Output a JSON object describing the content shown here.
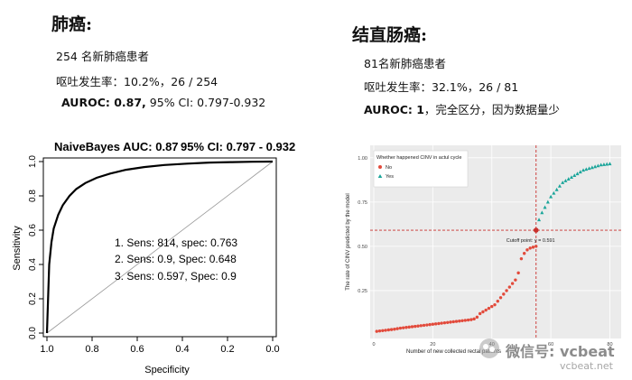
{
  "left": {
    "title": "肺癌:",
    "lines": [
      "254 名新肺癌患者",
      "呕吐发生率：10.2%，26 / 254"
    ],
    "auroc_label": "AUROC: 0.87,",
    "auroc_ci": "95% CI: 0.797-0.932"
  },
  "right": {
    "title": "结直肠癌:",
    "lines": [
      "81名新肺癌患者",
      "呕吐发生率：32.1%，26 / 81"
    ],
    "auroc_label": "AUROC: 1",
    "auroc_note": "，完全区分，因为数据量少"
  },
  "watermark": {
    "text": "微信号: vcbeat",
    "domain": "vcbeat.net"
  },
  "chart_data": [
    {
      "type": "line",
      "title": "NaiveBayes AUC: 0.87",
      "title_ci": "95% CI: 0.797 - 0.932",
      "xlabel": "Specificity",
      "ylabel": "Sensitivity",
      "x_reversed": true,
      "xlim": [
        1.0,
        0.0
      ],
      "ylim": [
        0.0,
        1.0
      ],
      "x_ticks": [
        "1.0",
        "0.8",
        "0.6",
        "0.4",
        "0.2",
        "0.0"
      ],
      "y_ticks": [
        "0.0",
        "0.2",
        "0.4",
        "0.6",
        "0.8",
        "1.0"
      ],
      "series": [
        {
          "type": "roc",
          "x": [
            1.0,
            0.99,
            0.98,
            0.97,
            0.95,
            0.93,
            0.9,
            0.87,
            0.83,
            0.78,
            0.72,
            0.65,
            0.57,
            0.48,
            0.38,
            0.28,
            0.18,
            0.09,
            0.0
          ],
          "y": [
            0.0,
            0.4,
            0.53,
            0.61,
            0.69,
            0.745,
            0.8,
            0.84,
            0.875,
            0.905,
            0.93,
            0.952,
            0.968,
            0.98,
            0.988,
            0.994,
            0.997,
            0.999,
            1.0
          ]
        },
        {
          "type": "reference",
          "x": [
            1.0,
            0.0
          ],
          "y": [
            0.0,
            1.0
          ]
        }
      ],
      "annotations": [
        "1.  Sens: 814, spec: 0.763",
        "2.  Sens: 0.9, Spec: 0.648",
        "3.  Sens: 0.597, Spec: 0.9"
      ]
    },
    {
      "type": "scatter",
      "xlabel": "Number of new collected rectal patients",
      "ylabel": "The rate of CINV predicted by the model",
      "legend_title": "Whether happened CINV in actul cycle",
      "legend_position": "top-left",
      "xlim": [
        0,
        82
      ],
      "ylim": [
        0,
        1.05
      ],
      "x_ticks": [
        "0",
        "20",
        "40",
        "60",
        "80"
      ],
      "y_ticks": [
        "0.25",
        "0.50",
        "0.75",
        "1.00"
      ],
      "y_tick_values": [
        0.25,
        0.5,
        0.75,
        1.0
      ],
      "grid": true,
      "cutoff": {
        "x": 55,
        "y": 0.591,
        "label": "Cutoff point: y = 0.591"
      },
      "series": [
        {
          "name": "No",
          "color": "#e24a3b",
          "x": [
            1,
            2,
            3,
            4,
            5,
            6,
            7,
            8,
            9,
            10,
            11,
            12,
            13,
            14,
            15,
            16,
            17,
            18,
            19,
            20,
            21,
            22,
            23,
            24,
            25,
            26,
            27,
            28,
            29,
            30,
            31,
            32,
            33,
            34,
            35,
            36,
            37,
            38,
            39,
            40,
            41,
            42,
            43,
            44,
            45,
            46,
            47,
            48,
            49,
            50,
            51,
            52,
            53,
            54,
            55
          ],
          "y": [
            0.02,
            0.022,
            0.024,
            0.026,
            0.028,
            0.03,
            0.032,
            0.035,
            0.038,
            0.04,
            0.042,
            0.044,
            0.046,
            0.048,
            0.05,
            0.052,
            0.054,
            0.056,
            0.058,
            0.06,
            0.062,
            0.064,
            0.066,
            0.068,
            0.07,
            0.072,
            0.074,
            0.076,
            0.078,
            0.08,
            0.082,
            0.084,
            0.086,
            0.09,
            0.1,
            0.12,
            0.13,
            0.14,
            0.15,
            0.16,
            0.17,
            0.19,
            0.21,
            0.23,
            0.25,
            0.27,
            0.29,
            0.31,
            0.35,
            0.43,
            0.46,
            0.48,
            0.49,
            0.495,
            0.5
          ]
        },
        {
          "name": "Yes",
          "color": "#1aa59a",
          "x": [
            55,
            56,
            57,
            58,
            59,
            60,
            61,
            62,
            63,
            64,
            65,
            66,
            67,
            68,
            69,
            70,
            71,
            72,
            73,
            74,
            75,
            76,
            77,
            78,
            79,
            80
          ],
          "y": [
            0.59,
            0.65,
            0.69,
            0.72,
            0.75,
            0.78,
            0.8,
            0.82,
            0.84,
            0.86,
            0.87,
            0.88,
            0.89,
            0.9,
            0.91,
            0.92,
            0.93,
            0.935,
            0.94,
            0.945,
            0.95,
            0.955,
            0.96,
            0.962,
            0.964,
            0.966
          ]
        }
      ]
    }
  ]
}
